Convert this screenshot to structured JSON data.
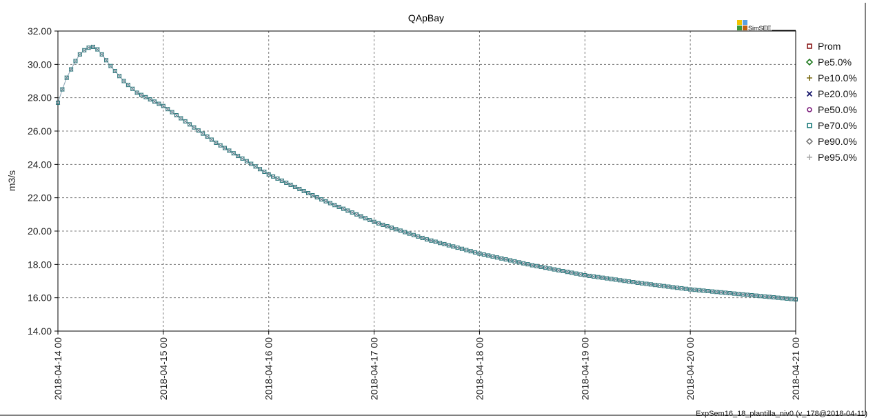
{
  "chart_data": {
    "type": "line",
    "title": "QApBay",
    "ylabel": "m3/s",
    "xlabel": "",
    "ylim": [
      14,
      32
    ],
    "yticks": [
      "14.00",
      "16.00",
      "18.00",
      "20.00",
      "22.00",
      "24.00",
      "26.00",
      "28.00",
      "30.00",
      "32.00"
    ],
    "x_start": "2018-04-14 00",
    "x_end": "2018-04-21 00",
    "xticks": [
      "2018-04-14 00",
      "2018-04-15 00",
      "2018-04-16 00",
      "2018-04-17 00",
      "2018-04-18 00",
      "2018-04-19 00",
      "2018-04-20 00",
      "2018-04-21 00"
    ],
    "grid": true,
    "legend_position": "right",
    "marker_style": "square-cross",
    "series": [
      {
        "name": "Prom",
        "color": "#8b1a1a",
        "marker": "square"
      },
      {
        "name": "Pe5.0%",
        "color": "#1f7a1f",
        "marker": "diamond"
      },
      {
        "name": "Pe10.0%",
        "color": "#7a6a10",
        "marker": "plus"
      },
      {
        "name": "Pe20.0%",
        "color": "#1a1a6e",
        "marker": "cross"
      },
      {
        "name": "Pe50.0%",
        "color": "#7a1a7a",
        "marker": "circle"
      },
      {
        "name": "Pe70.0%",
        "color": "#1a7a7a",
        "marker": "square"
      },
      {
        "name": "Pe90.0%",
        "color": "#7a7a7a",
        "marker": "diamond"
      },
      {
        "name": "Pe95.0%",
        "color": "#a8a8a8",
        "marker": "plus"
      }
    ],
    "points": [
      {
        "x": "2018-04-14 00",
        "y": 27.7
      },
      {
        "x": "2018-04-14 01",
        "y": 28.5
      },
      {
        "x": "2018-04-14 02",
        "y": 29.2
      },
      {
        "x": "2018-04-14 03",
        "y": 29.7
      },
      {
        "x": "2018-04-14 04",
        "y": 30.2
      },
      {
        "x": "2018-04-14 05",
        "y": 30.6
      },
      {
        "x": "2018-04-14 06",
        "y": 30.85
      },
      {
        "x": "2018-04-14 07",
        "y": 31.0
      },
      {
        "x": "2018-04-14 08",
        "y": 31.05
      },
      {
        "x": "2018-04-14 09",
        "y": 30.9
      },
      {
        "x": "2018-04-14 10",
        "y": 30.6
      },
      {
        "x": "2018-04-14 12",
        "y": 29.9
      },
      {
        "x": "2018-04-14 15",
        "y": 29.0
      },
      {
        "x": "2018-04-14 18",
        "y": 28.3
      },
      {
        "x": "2018-04-15 00",
        "y": 27.5
      },
      {
        "x": "2018-04-15 12",
        "y": 25.3
      },
      {
        "x": "2018-04-16 00",
        "y": 23.4
      },
      {
        "x": "2018-04-16 12",
        "y": 21.9
      },
      {
        "x": "2018-04-17 00",
        "y": 20.55
      },
      {
        "x": "2018-04-17 12",
        "y": 19.5
      },
      {
        "x": "2018-04-18 00",
        "y": 18.65
      },
      {
        "x": "2018-04-18 12",
        "y": 17.95
      },
      {
        "x": "2018-04-19 00",
        "y": 17.35
      },
      {
        "x": "2018-04-19 12",
        "y": 16.9
      },
      {
        "x": "2018-04-20 00",
        "y": 16.5
      },
      {
        "x": "2018-04-20 12",
        "y": 16.2
      },
      {
        "x": "2018-04-21 00",
        "y": 15.9
      }
    ]
  },
  "logo": {
    "text": "SimSEE",
    "colors": [
      "#f2c200",
      "#5aa0e0",
      "#3a9a3a",
      "#c06010"
    ]
  },
  "footer": {
    "text": "ExpSem16_18_plantilla_niv0 (v_178@2018-04-11)"
  }
}
